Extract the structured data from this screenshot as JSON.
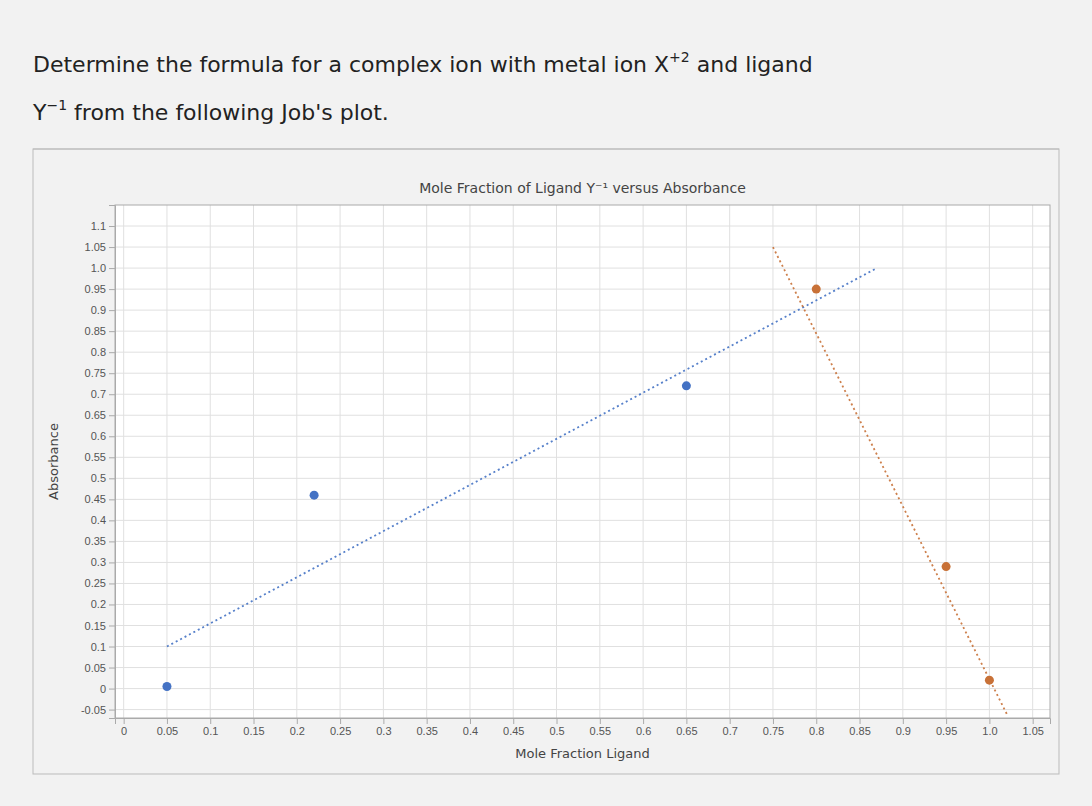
{
  "chart_data": {
    "type": "scatter",
    "title": "Mole Fraction of Ligand Y⁻¹ versus Absorbance",
    "annotations": [
      "Determine the formula for a complex ion with metal ion X",
      "+2",
      " and ligand",
      "Y",
      "−1",
      " from the following Job's plot."
    ],
    "xlabel": "Mole Fraction Ligand",
    "ylabel": "Absorbance",
    "series": [
      {
        "type": "line",
        "line_style": "dotted",
        "color": "#4472c4",
        "x": [
          0.05,
          0.87
        ],
        "values": [
          0.1,
          1.0
        ]
      },
      {
        "type": "line",
        "line_style": "dotted",
        "color": "#c87137",
        "x": [
          0.75,
          1.02
        ],
        "values": [
          1.05,
          -0.06
        ]
      },
      {
        "type": "scatter",
        "marker": "circle",
        "color": "#4472c4",
        "x": [
          0.05,
          0.22,
          0.65
        ],
        "values": [
          0.005,
          0.46,
          0.72
        ]
      },
      {
        "type": "scatter",
        "marker": "circle",
        "color": "#c87137",
        "x": [
          0.8,
          0.95,
          1.0
        ],
        "values": [
          0.95,
          0.29,
          0.02
        ]
      }
    ],
    "xlim": [
      -0.01,
      1.07
    ],
    "ylim": [
      -0.07,
      1.15
    ],
    "xticks": [
      0,
      0.05,
      0.1,
      0.15,
      0.2,
      0.25,
      0.3,
      0.35,
      0.4,
      0.45,
      0.5,
      0.55,
      0.6,
      0.65,
      0.7,
      0.75,
      0.8,
      0.85,
      0.9,
      0.95,
      {
        "value": 1.0,
        "label": "1.0"
      },
      1.05
    ],
    "yticks": [
      -0.05,
      0,
      0.05,
      0.1,
      0.15,
      0.2,
      0.25,
      0.3,
      0.35,
      0.4,
      0.45,
      0.5,
      0.55,
      0.6,
      0.65,
      0.7,
      0.75,
      0.8,
      0.85,
      0.9,
      0.95,
      {
        "value": 1.0,
        "label": "1.0"
      },
      1.05,
      1.1
    ],
    "grid": true
  }
}
